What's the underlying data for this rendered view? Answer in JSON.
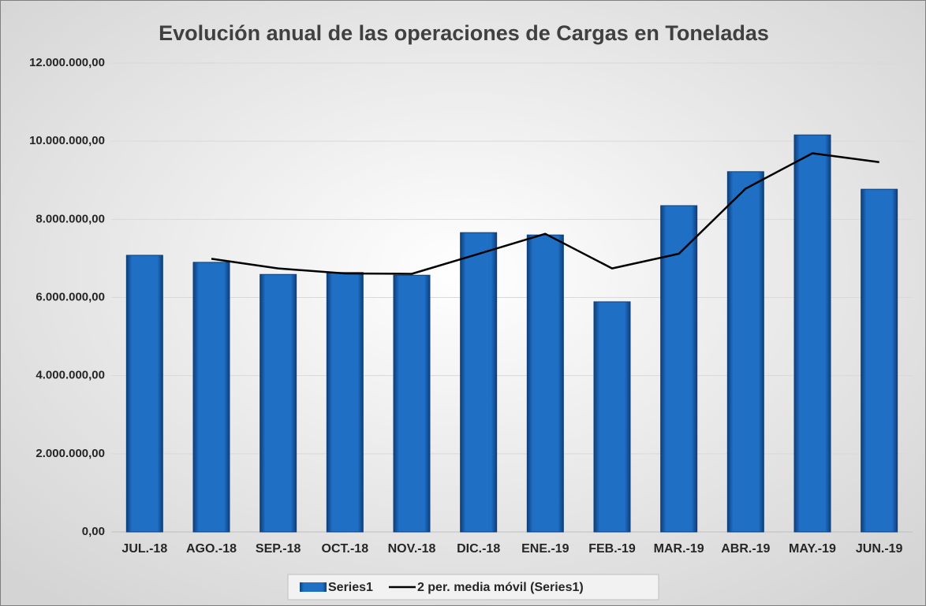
{
  "chart_data": {
    "type": "bar",
    "title": "Evolución anual de las operaciones de Cargas en Toneladas",
    "categories": [
      "JUL.-18",
      "AGO.-18",
      "SEP.-18",
      "OCT.-18",
      "NOV.-18",
      "DIC.-18",
      "ENE.-19",
      "FEB.-19",
      "MAR.-19",
      "ABR.-19",
      "MAY.-19",
      "JUN.-19"
    ],
    "series": [
      {
        "name": "Series1",
        "type": "bar",
        "color": "#1f6fc5",
        "values": [
          7080000,
          6900000,
          6590000,
          6640000,
          6570000,
          7660000,
          7600000,
          5890000,
          8350000,
          9220000,
          10160000,
          8770000
        ]
      },
      {
        "name": "2 per. media móvil (Series1)",
        "type": "line",
        "color": "#000000",
        "values": [
          null,
          6990000,
          6745000,
          6615000,
          6605000,
          7115000,
          7630000,
          6745000,
          7120000,
          8785000,
          9690000,
          9465000
        ]
      }
    ],
    "ylim": [
      0,
      12000000
    ],
    "yticks": [
      {
        "value": 0,
        "label": "0,00"
      },
      {
        "value": 2000000,
        "label": "2.000.000,00"
      },
      {
        "value": 4000000,
        "label": "4.000.000,00"
      },
      {
        "value": 6000000,
        "label": "6.000.000,00"
      },
      {
        "value": 8000000,
        "label": "8.000.000,00"
      },
      {
        "value": 10000000,
        "label": "10.000.000,00"
      },
      {
        "value": 12000000,
        "label": "12.000.000,00"
      }
    ],
    "grid": true,
    "legend": "bottom"
  }
}
